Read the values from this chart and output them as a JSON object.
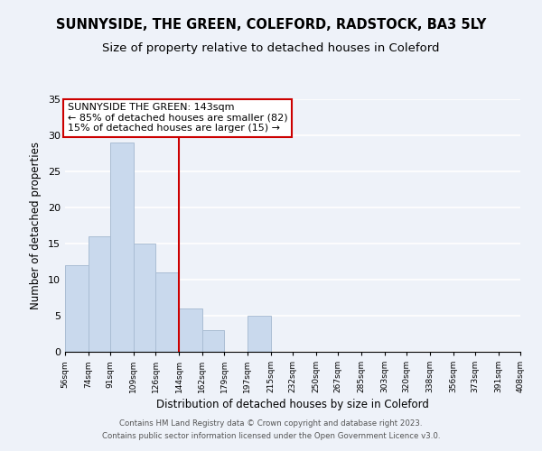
{
  "title": "SUNNYSIDE, THE GREEN, COLEFORD, RADSTOCK, BA3 5LY",
  "subtitle": "Size of property relative to detached houses in Coleford",
  "xlabel": "Distribution of detached houses by size in Coleford",
  "ylabel": "Number of detached properties",
  "bar_edges": [
    56,
    74,
    91,
    109,
    126,
    144,
    162,
    179,
    197,
    215,
    232,
    250,
    267,
    285,
    303,
    320,
    338,
    356,
    373,
    391,
    408
  ],
  "bar_heights": [
    12,
    16,
    29,
    15,
    11,
    6,
    3,
    0,
    5,
    0,
    0,
    0,
    0,
    0,
    0,
    0,
    0,
    0,
    0,
    0
  ],
  "bar_color": "#c9d9ed",
  "bar_edgecolor": "#aabdd4",
  "vline_x": 144,
  "vline_color": "#cc0000",
  "annotation_box_title": "SUNNYSIDE THE GREEN: 143sqm",
  "annotation_line1": "← 85% of detached houses are smaller (82)",
  "annotation_line2": "15% of detached houses are larger (15) →",
  "annotation_fontsize": 8,
  "ylim": [
    0,
    35
  ],
  "yticks": [
    0,
    5,
    10,
    15,
    20,
    25,
    30,
    35
  ],
  "tick_labels": [
    "56sqm",
    "74sqm",
    "91sqm",
    "109sqm",
    "126sqm",
    "144sqm",
    "162sqm",
    "179sqm",
    "197sqm",
    "215sqm",
    "232sqm",
    "250sqm",
    "267sqm",
    "285sqm",
    "303sqm",
    "320sqm",
    "338sqm",
    "356sqm",
    "373sqm",
    "391sqm",
    "408sqm"
  ],
  "footer_line1": "Contains HM Land Registry data © Crown copyright and database right 2023.",
  "footer_line2": "Contains public sector information licensed under the Open Government Licence v3.0.",
  "bg_color": "#eef2f9",
  "grid_color": "#ffffff",
  "title_fontsize": 10.5,
  "subtitle_fontsize": 9.5
}
